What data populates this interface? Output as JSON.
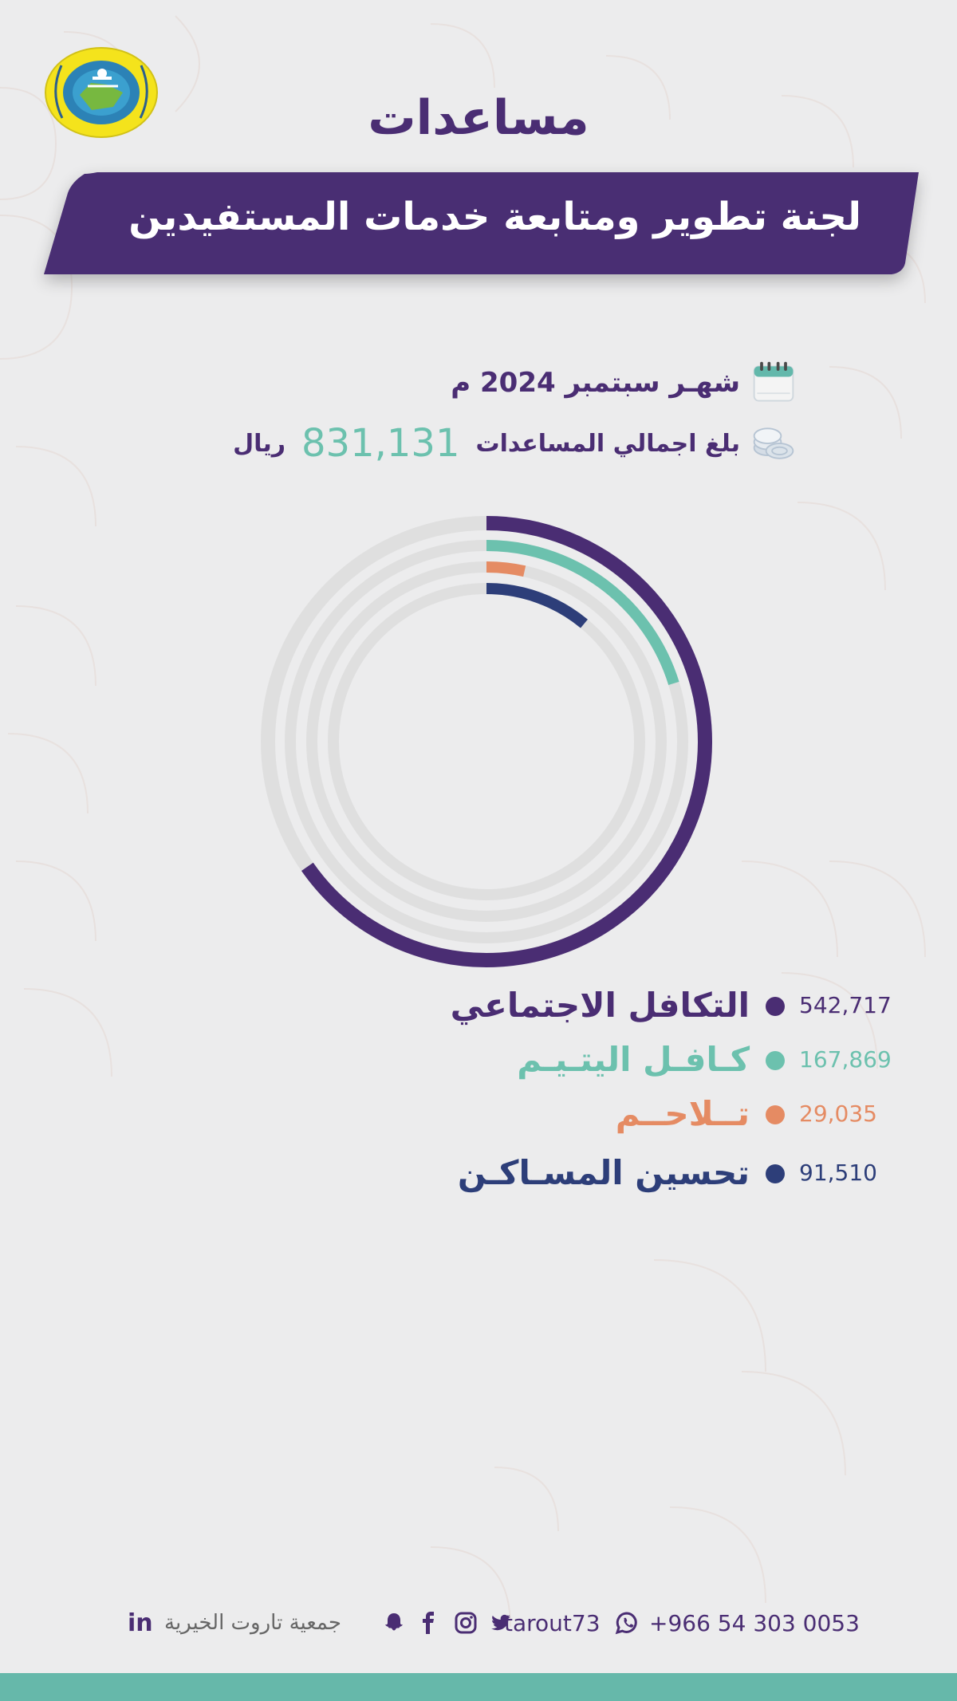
{
  "page": {
    "title": "مساعدات",
    "subtitle": "لجنة تطوير ومتابعة خدمات المستفيدين",
    "month_text": "شهـر سبتمبر 2024 م",
    "total_prefix": "بلغ اجمالي المساعدات",
    "total_value": "831,131",
    "total_suffix": "ريال"
  },
  "legend": [
    {
      "label": "التكافل الاجتماعي",
      "value": "542,717",
      "color": "#4a2d73"
    },
    {
      "label": "كـافـل اليتـيـم",
      "value": "167,869",
      "color": "#6cc1ae"
    },
    {
      "label": "تــلاحــم",
      "value": "29,035",
      "color": "#e58b63"
    },
    {
      "label": "تحسين المسـاكـن",
      "value": "91,510",
      "color": "#2d3e79"
    }
  ],
  "chart_data": {
    "type": "radial-bar",
    "title": "",
    "categories": [
      "التكافل الاجتماعي",
      "كـافـل اليتـيـم",
      "تــلاحــم",
      "تحسين المسـاكـن"
    ],
    "values": [
      542717,
      167869,
      29035,
      91510
    ],
    "total": 831131,
    "colors": [
      "#4a2d73",
      "#6cc1ae",
      "#e58b63",
      "#2d3e79"
    ],
    "track_color": "#dfdfdf",
    "legend_position": "bottom"
  },
  "footer": {
    "linkedin": "in",
    "org_name": "جمعية تاروت الخيرية",
    "handle": "tarout73",
    "phone": "+966 54 303 0053"
  },
  "icons": {
    "logo": "association-logo",
    "calendar": "calendar-icon",
    "coins": "coins-icon",
    "linkedin": "linkedin-icon",
    "snapchat": "snapchat-icon",
    "facebook": "facebook-icon",
    "instagram": "instagram-icon",
    "twitter": "twitter-icon",
    "whatsapp": "whatsapp-icon"
  }
}
